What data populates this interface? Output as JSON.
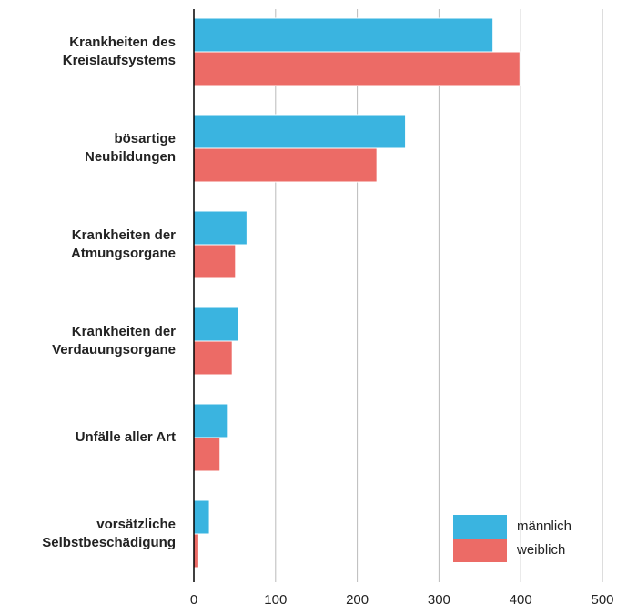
{
  "chart_data": {
    "type": "bar",
    "orientation": "horizontal",
    "categories": [
      [
        "Krankheiten des",
        "Kreislaufsystems"
      ],
      [
        "bösartige",
        "Neubildungen"
      ],
      [
        "Krankheiten der",
        "Atmungsorgane"
      ],
      [
        "Krankheiten der",
        "Verdauungsorgane"
      ],
      [
        "Unfälle aller Art"
      ],
      [
        "vorsätzliche",
        "Selbstbeschädigung"
      ]
    ],
    "series": [
      {
        "name": "männlich",
        "color": "#3ab4e0",
        "values": [
          366,
          259,
          65,
          55,
          41,
          19
        ]
      },
      {
        "name": "weiblich",
        "color": "#ec6b66",
        "values": [
          399,
          224,
          51,
          47,
          32,
          6
        ]
      }
    ],
    "xlim": [
      0,
      500
    ],
    "xticks": [
      0,
      100,
      200,
      300,
      400,
      500
    ],
    "grid": true,
    "legend": "lower right"
  }
}
